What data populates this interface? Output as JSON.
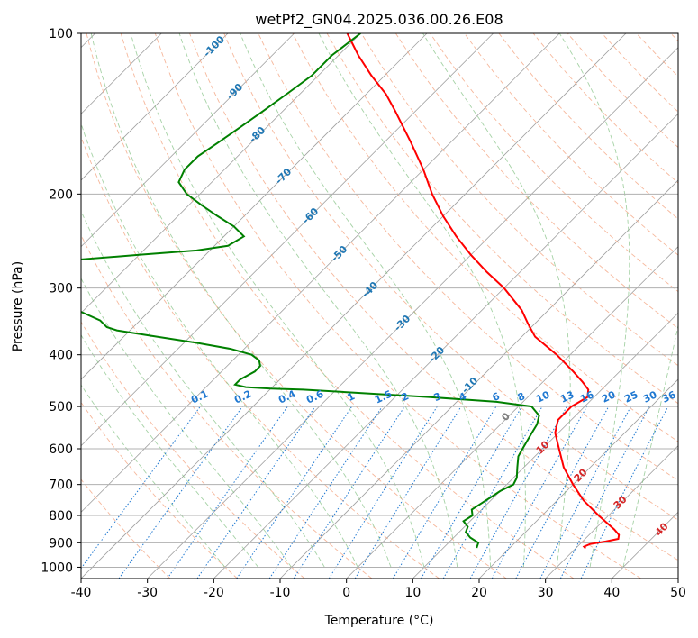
{
  "chart_data": {
    "type": "line",
    "subtype": "skew-t log-p",
    "title": "wetPf2_GN04.2025.036.00.26.E08",
    "xlabel": "Temperature (°C)",
    "ylabel": "Pressure (hPa)",
    "xlim": [
      -40,
      50
    ],
    "ylim": [
      1050,
      100
    ],
    "y_scale": "log",
    "x_ticks": [
      -40,
      -30,
      -20,
      -10,
      0,
      10,
      20,
      30,
      40,
      50
    ],
    "y_ticks": [
      100,
      200,
      300,
      400,
      500,
      600,
      700,
      800,
      900,
      1000
    ],
    "grid": true,
    "colors": {
      "temperature": "#ff0000",
      "dewpoint": "#008000",
      "isotherm": "#a0a0a0",
      "dry_adiabat": "#f4a582",
      "moist_adiabat": "#7fbf7f",
      "mixing_ratio": "#1f78d1",
      "contour_label_blue": "#1f77b4",
      "contour_label_red": "#d62728",
      "contour_label_gray": "#7f7f7f"
    },
    "series": [
      {
        "pressure": [
          922,
          915,
          905,
          895,
          885,
          870,
          850,
          800,
          750,
          700,
          650,
          600,
          560,
          530,
          500,
          480,
          465,
          450,
          430,
          400,
          370,
          350,
          330,
          300,
          280,
          260,
          240,
          220,
          200,
          180,
          160,
          140,
          130,
          120,
          110,
          100
        ],
        "temperature": [
          31.5,
          31.0,
          31.5,
          33.5,
          35.0,
          34.5,
          33.0,
          28.5,
          24.0,
          20.0,
          16.0,
          12.5,
          9.5,
          8.0,
          8.0,
          9.0,
          8.0,
          6.0,
          3.0,
          -2.0,
          -8.0,
          -11.0,
          -14.0,
          -20.0,
          -25.0,
          -30.0,
          -35.0,
          -40.0,
          -45.0,
          -50.0,
          -56.0,
          -63.0,
          -67.0,
          -72.0,
          -77.0,
          -82.0
        ]
      },
      {
        "pressure": [
          920,
          900,
          880,
          860,
          840,
          820,
          800,
          780,
          760,
          740,
          720,
          700,
          680,
          650,
          620,
          600,
          580,
          560,
          540,
          520,
          500,
          490,
          480,
          470,
          465,
          463,
          460,
          455,
          445,
          430,
          420,
          410,
          400,
          390,
          380,
          370,
          360,
          355,
          345,
          330,
          310,
          300,
          295,
          285,
          275,
          265,
          260,
          255,
          250,
          240,
          230,
          220,
          210,
          200,
          190,
          180,
          170,
          160,
          150,
          140,
          130,
          120,
          110,
          100
        ],
        "dewpoint": [
          15.0,
          14.5,
          12.5,
          11.0,
          10.5,
          9.0,
          9.5,
          8.5,
          9.0,
          9.5,
          10.0,
          11.0,
          10.5,
          9.0,
          7.5,
          7.0,
          6.5,
          6.0,
          5.5,
          4.5,
          2.0,
          -4.0,
          -15.0,
          -28.0,
          -35.0,
          -40.0,
          -44.0,
          -46.0,
          -46.0,
          -45.0,
          -45.0,
          -46.0,
          -48.0,
          -52.0,
          -58.0,
          -65.0,
          -72.0,
          -74.0,
          -76.0,
          -81.0,
          -88.0,
          -90.0,
          -91.0,
          -90.0,
          -89.0,
          -88.0,
          -80.0,
          -72.0,
          -68.0,
          -67.0,
          -70.0,
          -74.0,
          -78.0,
          -82.0,
          -85.0,
          -86.0,
          -86.0,
          -85.0,
          -84.0,
          -83.0,
          -82.0,
          -81.0,
          -81.0,
          -80.0
        ]
      }
    ],
    "dry_adiabat_labels": [
      "-100",
      "-90",
      "-80",
      "-70",
      "-60",
      "-50",
      "-40",
      "-30",
      "-20",
      "-10",
      "0",
      "10",
      "20",
      "30",
      "40"
    ],
    "mixing_ratio_labels": [
      "0.1",
      "0.2",
      "0.4",
      "0.6",
      "1",
      "1.5",
      "2",
      "3",
      "4",
      "6",
      "8",
      "10",
      "13",
      "16",
      "20",
      "25",
      "30",
      "36"
    ]
  }
}
